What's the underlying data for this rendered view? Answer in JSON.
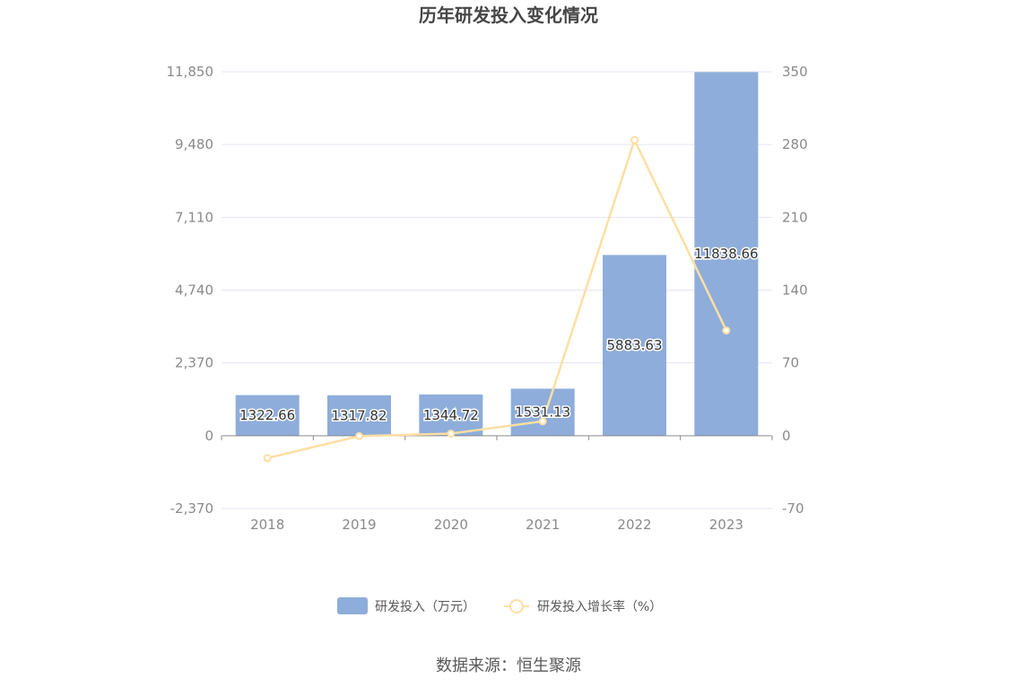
{
  "chart_data": {
    "type": "bar",
    "title": "历年研发投入变化情况",
    "categories": [
      "2018",
      "2019",
      "2020",
      "2021",
      "2022",
      "2023"
    ],
    "series": [
      {
        "name": "研发投入（万元）",
        "type": "bar",
        "axis": "left",
        "values": [
          1322.66,
          1317.82,
          1344.72,
          1531.13,
          5883.63,
          11838.66
        ],
        "labels": [
          "1322.66",
          "1317.82",
          "1344.72",
          "1531.13",
          "5883.63",
          "11838.66"
        ],
        "color": "#8eadda"
      },
      {
        "name": "研发投入增长率（%）",
        "type": "line",
        "axis": "right",
        "values": [
          -21.5,
          -0.37,
          2.04,
          13.86,
          284.27,
          101.21
        ],
        "color": "#fddfa3"
      }
    ],
    "y_left": {
      "ylim": [
        -2370,
        11850
      ],
      "ticks": [
        "11,850",
        "9,480",
        "7,110",
        "4,740",
        "2,370",
        "0",
        "-2,370"
      ],
      "tick_values": [
        11850,
        9480,
        7110,
        4740,
        2370,
        0,
        -2370
      ]
    },
    "y_right": {
      "ylim": [
        -70,
        350
      ],
      "ticks": [
        "350",
        "280",
        "210",
        "140",
        "70",
        "0",
        "-70"
      ],
      "tick_values": [
        350,
        280,
        210,
        140,
        70,
        0,
        -70
      ]
    },
    "grid": true,
    "legend_position": "bottom-center"
  },
  "source_text": "数据来源：恒生聚源"
}
